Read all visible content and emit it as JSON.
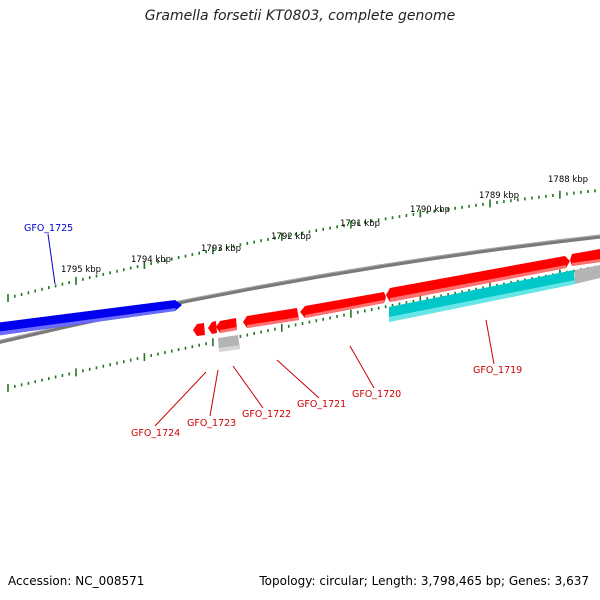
{
  "title": "Gramella forsetii KT0803, complete genome",
  "footer": {
    "accession": "Accession: NC_008571",
    "summary": "Topology: circular; Length: 3,798,465 bp; Genes: 3,637"
  },
  "colors": {
    "forward_gene": "#ff0000",
    "reverse_gene_blue": "#0000ee",
    "cyan_feature": "#00c8c8",
    "grey_feature": "#b4b4b4",
    "backbone": "#777777",
    "tick": "#227722",
    "label_red": "#cc0000",
    "label_blue": "#0000cc"
  },
  "scale_labels": [
    "1788 kbp",
    "1789 kbp",
    "1790 kbp",
    "1791 kbp",
    "1792 kbp",
    "1793 kbp",
    "1794 kbp",
    "1795 kbp"
  ],
  "gene_labels": [
    {
      "name": "GFO_1719",
      "color": "red"
    },
    {
      "name": "GFO_1720",
      "color": "red"
    },
    {
      "name": "GFO_1721",
      "color": "red"
    },
    {
      "name": "GFO_1722",
      "color": "red"
    },
    {
      "name": "GFO_1723",
      "color": "red"
    },
    {
      "name": "GFO_1724",
      "color": "red"
    },
    {
      "name": "GFO_1725",
      "color": "blue"
    }
  ]
}
